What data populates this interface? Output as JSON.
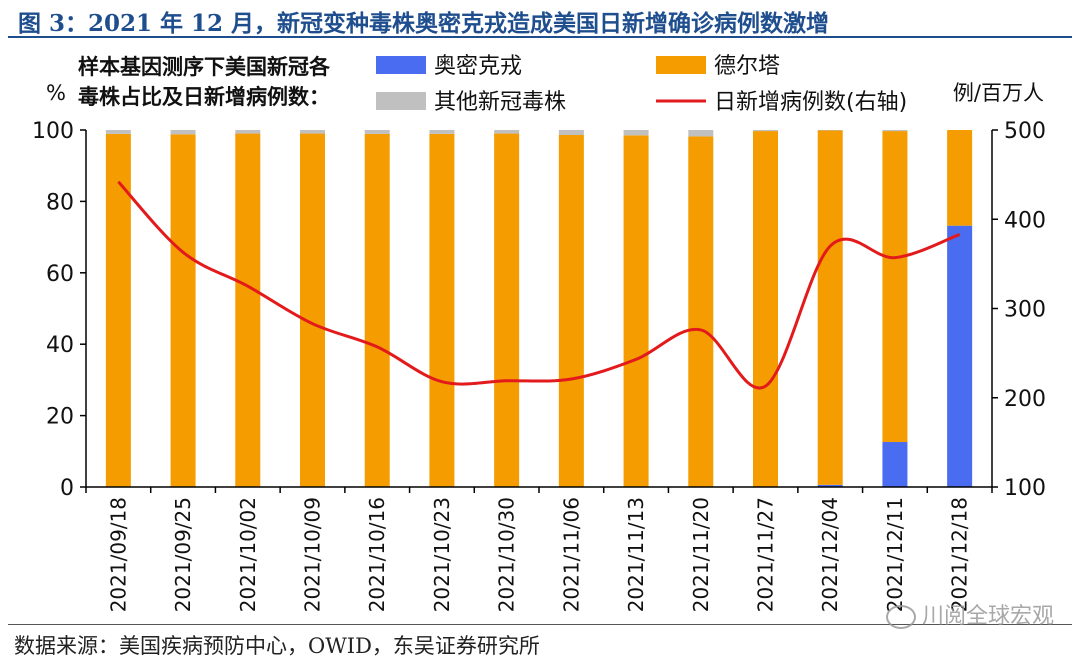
{
  "title": "图 3：2021 年 12 月，新冠变种毒株奥密克戎造成美国日新增确诊病例数激增",
  "source": "数据来源：美国疾病预防中心，OWID，东吴证券研究所",
  "watermark": "川阅全球宏观",
  "watermark_icon": "wechat-icon",
  "colors": {
    "omicron": "#4a6cf0",
    "delta": "#f59c00",
    "other": "#c0c0c0",
    "line": "#e31a1c",
    "title": "#1f4e8f"
  },
  "chart_data": {
    "type": "bar",
    "stacked": true,
    "legend_title": [
      "样本基因测序下美国新冠各",
      "毒株占比及日新增病例数："
    ],
    "left_axis_unit": "%",
    "right_axis_unit": "例/百万人",
    "categories": [
      "2021/09/18",
      "2021/09/25",
      "2021/10/02",
      "2021/10/09",
      "2021/10/16",
      "2021/10/23",
      "2021/10/30",
      "2021/11/06",
      "2021/11/13",
      "2021/11/20",
      "2021/11/27",
      "2021/12/04",
      "2021/12/11",
      "2021/12/18"
    ],
    "ylim": [
      0,
      100
    ],
    "yticks": [
      0,
      20,
      40,
      60,
      80,
      100
    ],
    "y2lim": [
      100,
      500
    ],
    "y2ticks": [
      100,
      200,
      300,
      400,
      500
    ],
    "series": [
      {
        "name": "奥密克戎",
        "axis": "left",
        "kind": "bar",
        "values": [
          0,
          0,
          0,
          0,
          0,
          0,
          0,
          0,
          0,
          0,
          0,
          0.6,
          12.6,
          73.2
        ]
      },
      {
        "name": "德尔塔",
        "axis": "left",
        "kind": "bar",
        "values": [
          98.9,
          98.8,
          99.0,
          99.0,
          98.9,
          98.9,
          99.0,
          98.6,
          98.5,
          98.2,
          99.7,
          99.3,
          87.1,
          26.8
        ]
      },
      {
        "name": "其他新冠毒株",
        "axis": "left",
        "kind": "bar",
        "values": [
          1.1,
          1.2,
          1.0,
          1.0,
          1.1,
          1.1,
          1.0,
          1.4,
          1.5,
          1.8,
          0.3,
          0.1,
          0.3,
          0.0
        ]
      },
      {
        "name": "日新增病例数(右轴)",
        "axis": "right",
        "kind": "line",
        "values": [
          442,
          363,
          325,
          283,
          257,
          218,
          219,
          221,
          243,
          276,
          213,
          370,
          357,
          383
        ]
      }
    ]
  }
}
